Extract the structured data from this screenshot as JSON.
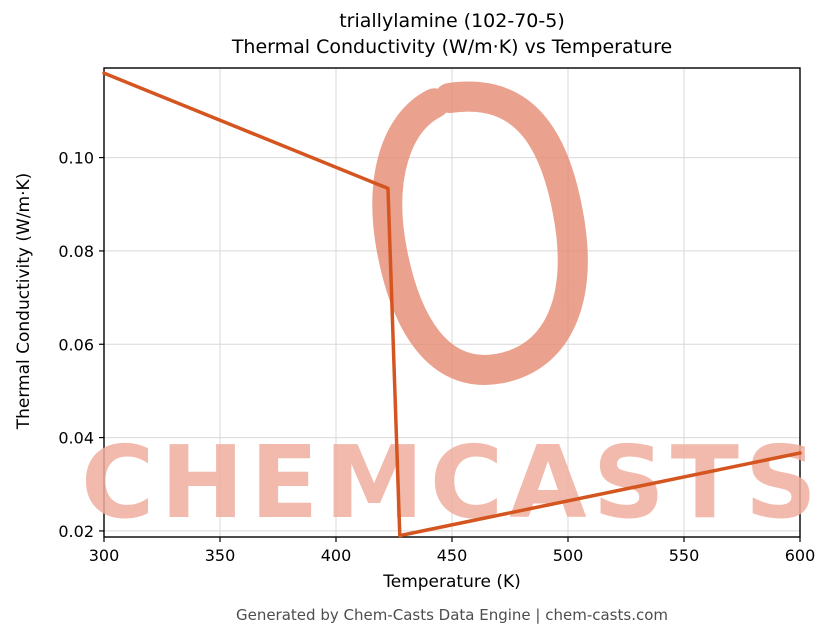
{
  "title_line1": "triallylamine (102-70-5)",
  "title_line2": "Thermal Conductivity (W/m·K) vs Temperature",
  "xlabel": "Temperature (K)",
  "ylabel": "Thermal Conductivity (W/m·K)",
  "footer": "Generated by Chem-Casts Data Engine | chem-casts.com",
  "watermark": {
    "text": "CHEMCASTS"
  },
  "colors": {
    "line": "#d4551f",
    "grid": "#d9d9d9",
    "axis": "#000000",
    "watermark": "#efae9e",
    "swirl": "#e58a72"
  },
  "chart_data": {
    "type": "line",
    "title": "triallylamine (102-70-5)\nThermal Conductivity (W/m·K) vs Temperature",
    "xlabel": "Temperature (K)",
    "ylabel": "Thermal Conductivity (W/m·K)",
    "xlim": [
      300,
      600
    ],
    "ylim": [
      0.0187,
      0.1192
    ],
    "xticks": [
      300,
      350,
      400,
      450,
      500,
      550,
      600
    ],
    "yticks": [
      0.02,
      0.04,
      0.06,
      0.08,
      0.1
    ],
    "ytick_labels": [
      "0.02",
      "0.04",
      "0.06",
      "0.08",
      "0.10"
    ],
    "grid": true,
    "legend": "none",
    "series": [
      {
        "name": "thermal-conductivity",
        "x": [
          300,
          422.4,
          427.5,
          600
        ],
        "y": [
          0.1181,
          0.0934,
          0.019,
          0.0367
        ]
      }
    ]
  }
}
